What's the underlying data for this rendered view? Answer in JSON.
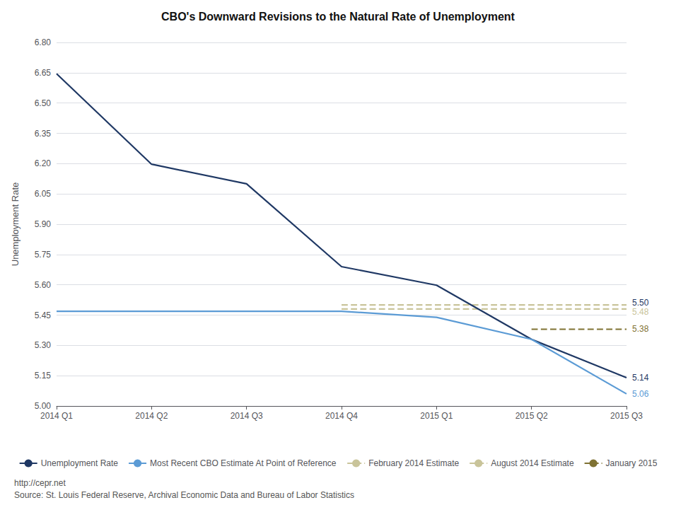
{
  "chart_data": {
    "type": "line",
    "title": "CBO's Downward Revisions to the Natural Rate of Unemployment",
    "y_label": "Unemployment Rate",
    "categories": [
      "2014 Q1",
      "2014 Q2",
      "2014 Q3",
      "2014 Q4",
      "2015 Q1",
      "2015 Q2",
      "2015 Q3"
    ],
    "ylim": [
      5.0,
      6.8
    ],
    "yticks": [
      {
        "value": 5.0,
        "label": "5.00"
      },
      {
        "value": 5.15,
        "label": "5.15"
      },
      {
        "value": 5.3,
        "label": "5.30"
      },
      {
        "value": 5.45,
        "label": "5.45"
      },
      {
        "value": 5.6,
        "label": "5.60"
      },
      {
        "value": 5.75,
        "label": "5.75"
      },
      {
        "value": 5.9,
        "label": "5.90"
      },
      {
        "value": 6.05,
        "label": "6.05"
      },
      {
        "value": 6.2,
        "label": "6.20"
      },
      {
        "value": 6.35,
        "label": "6.35"
      },
      {
        "value": 6.5,
        "label": "6.50"
      },
      {
        "value": 6.65,
        "label": "6.65"
      },
      {
        "value": 6.8,
        "label": "6.80"
      }
    ],
    "grid": true,
    "legend": "bottom",
    "series": [
      {
        "name": "Unemployment Rate",
        "color": "#1f3864",
        "line_style": "solid",
        "values": [
          6.645,
          6.197,
          6.1,
          5.69,
          5.598,
          5.33,
          5.14
        ]
      },
      {
        "name": "Most Recent CBO Estimate At Point of Reference",
        "color": "#5b9bd5",
        "line_style": "solid",
        "values": [
          5.469,
          5.469,
          5.469,
          5.469,
          5.439,
          5.33,
          5.06
        ]
      },
      {
        "name": "February 2014 Estimate",
        "color": "#c9c49a",
        "line_style": "dashed",
        "values": [
          null,
          null,
          null,
          5.5,
          5.5,
          5.5,
          5.5
        ]
      },
      {
        "name": "August 2014 Estimate",
        "color": "#c9c49a",
        "line_style": "dashed",
        "values": [
          null,
          null,
          null,
          5.48,
          5.48,
          5.48,
          5.48
        ]
      },
      {
        "name": "January 2015",
        "color": "#7f7233",
        "line_style": "dashed",
        "values": [
          null,
          null,
          null,
          null,
          null,
          5.38,
          5.38
        ]
      }
    ],
    "annotations": [
      {
        "text": "5.50",
        "y": 5.5,
        "color": "#1f3864"
      },
      {
        "text": "5.48",
        "y": 5.48,
        "color": "#c9c49a"
      },
      {
        "text": "5.38",
        "y": 5.38,
        "color": "#7f7233"
      },
      {
        "text": "5.14",
        "y": 5.14,
        "color": "#1f3864"
      },
      {
        "text": "5.06",
        "y": 5.06,
        "color": "#5b9bd5"
      }
    ],
    "source": [
      "http://cepr.net",
      "Source: St. Louis Federal Reserve, Archival Economic Data and Bureau of Labor Statistics"
    ]
  }
}
